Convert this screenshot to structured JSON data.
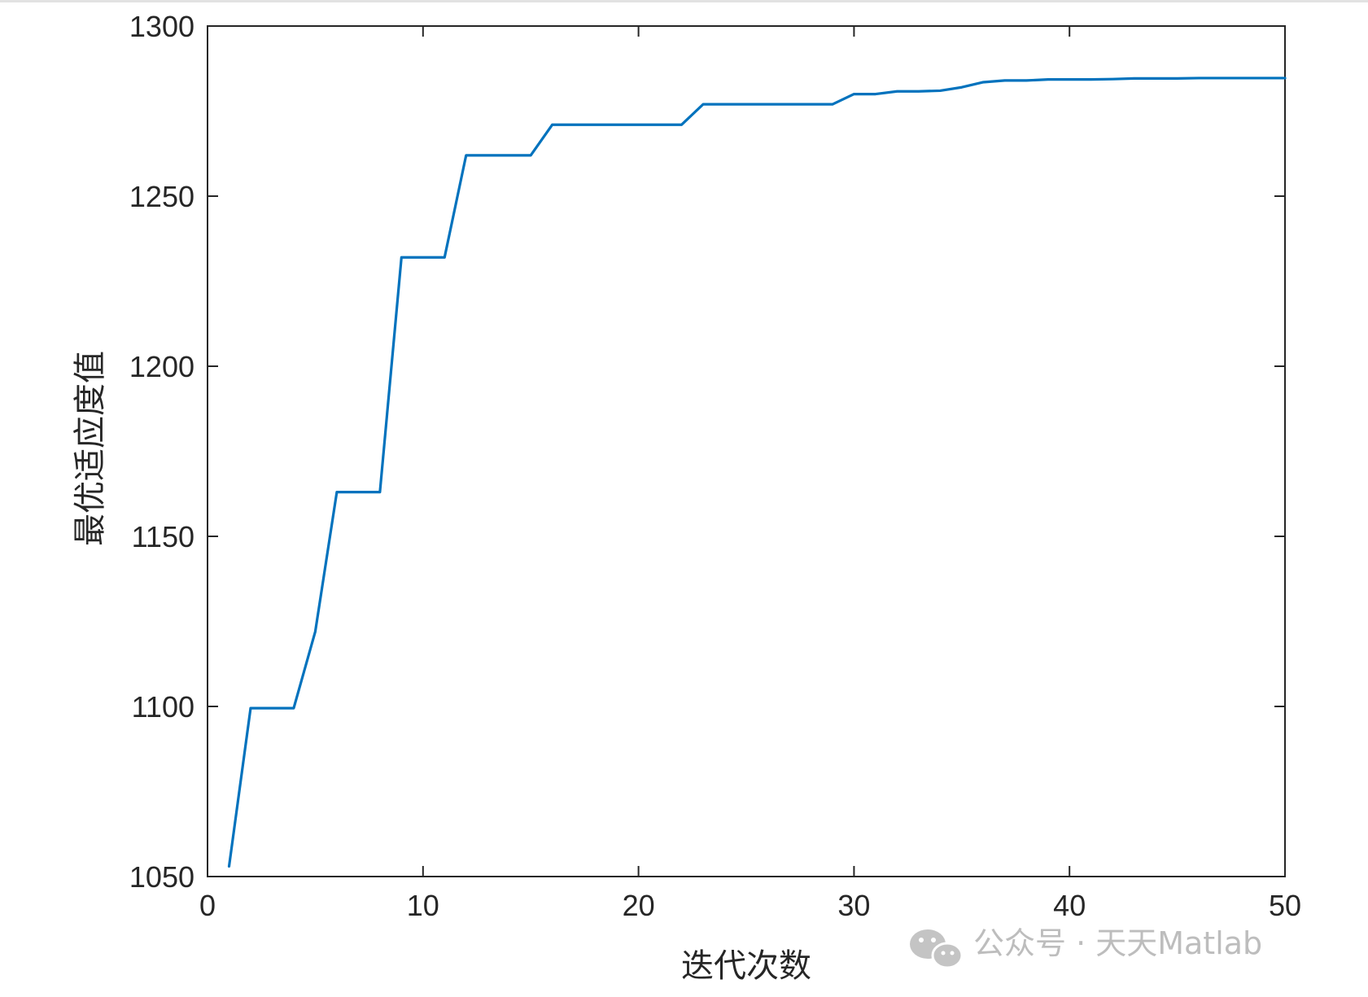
{
  "chart_data": {
    "type": "line",
    "title": "",
    "xlabel": "迭代次数",
    "ylabel": "最优适应度值",
    "xlim": [
      0,
      50
    ],
    "ylim": [
      1050,
      1300
    ],
    "xticks": [
      0,
      10,
      20,
      30,
      40,
      50
    ],
    "yticks": [
      1050,
      1100,
      1150,
      1200,
      1250,
      1300
    ],
    "xtick_labels": [
      "0",
      "10",
      "20",
      "30",
      "40",
      "50"
    ],
    "ytick_labels": [
      "1050",
      "1100",
      "1150",
      "1200",
      "1250",
      "1300"
    ],
    "grid": false,
    "box": true,
    "series": [
      {
        "color": "#0072BD",
        "x": [
          1,
          2,
          3,
          4,
          5,
          6,
          7,
          8,
          9,
          10,
          11,
          12,
          13,
          14,
          15,
          16,
          17,
          18,
          19,
          20,
          21,
          22,
          23,
          24,
          25,
          26,
          27,
          28,
          29,
          30,
          31,
          32,
          33,
          34,
          35,
          36,
          37,
          38,
          39,
          40,
          41,
          42,
          43,
          44,
          45,
          46,
          47,
          48,
          49,
          50
        ],
        "y": [
          1053,
          1099.5,
          1099.5,
          1099.5,
          1122,
          1163,
          1163,
          1163,
          1232,
          1232,
          1232,
          1262,
          1262,
          1262,
          1262,
          1271,
          1271,
          1271,
          1271,
          1271,
          1271,
          1271,
          1277,
          1277,
          1277,
          1277,
          1277,
          1277,
          1277,
          1280,
          1280,
          1280.8,
          1280.8,
          1281,
          1282,
          1283.5,
          1284,
          1284,
          1284.3,
          1284.3,
          1284.3,
          1284.4,
          1284.6,
          1284.6,
          1284.6,
          1284.7,
          1284.7,
          1284.7,
          1284.7,
          1284.7
        ]
      }
    ]
  },
  "watermark": {
    "text": "公众号 · 天天Matlab",
    "icon": "wechat-icon"
  }
}
